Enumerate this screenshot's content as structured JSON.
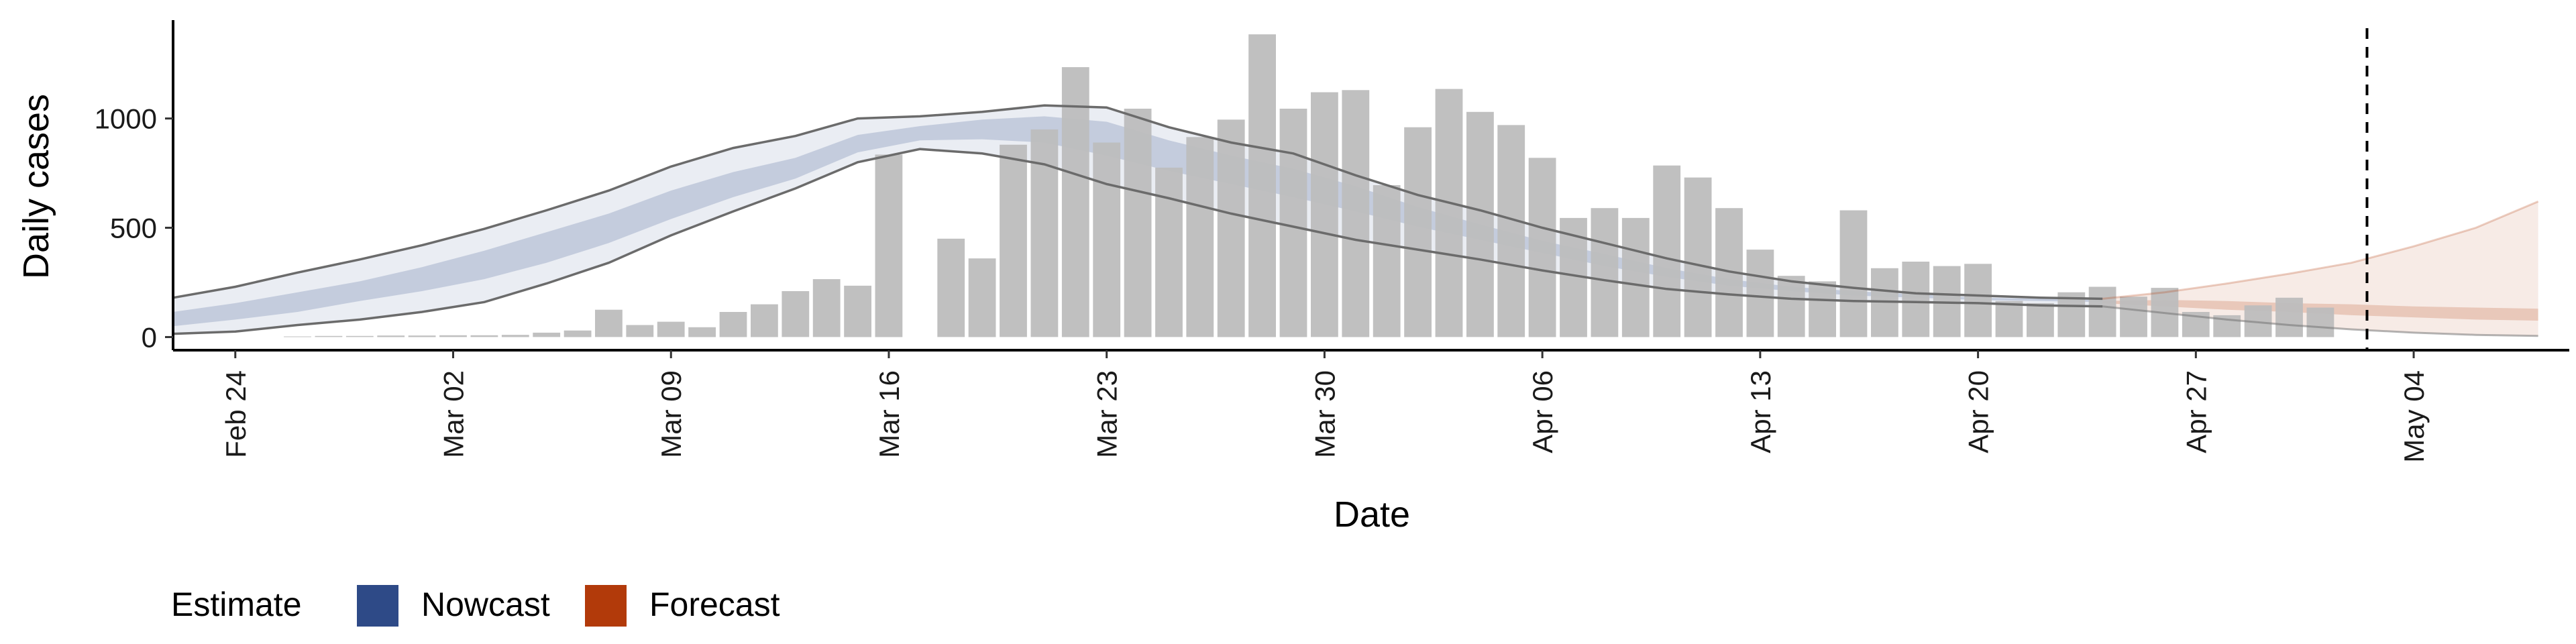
{
  "colors": {
    "nowcast": "#2e4a87",
    "forecast": "#b23a0a",
    "bars": "#bdbdbd",
    "line": "#6b6b6b"
  },
  "chart_data": {
    "type": "bar",
    "xlabel": "Date",
    "ylabel": "Daily cases",
    "ylim": [
      -60,
      1450
    ],
    "yticks": [
      0,
      500,
      1000
    ],
    "grid": false,
    "x_start": "2020-02-22",
    "x_end": "2020-05-09",
    "xticks": [
      {
        "date": "2020-02-24",
        "label": "Feb 24"
      },
      {
        "date": "2020-03-02",
        "label": "Mar 02"
      },
      {
        "date": "2020-03-09",
        "label": "Mar 09"
      },
      {
        "date": "2020-03-16",
        "label": "Mar 16"
      },
      {
        "date": "2020-03-23",
        "label": "Mar 23"
      },
      {
        "date": "2020-03-30",
        "label": "Mar 30"
      },
      {
        "date": "2020-04-06",
        "label": "Apr 06"
      },
      {
        "date": "2020-04-13",
        "label": "Apr 13"
      },
      {
        "date": "2020-04-20",
        "label": "Apr 20"
      },
      {
        "date": "2020-04-27",
        "label": "Apr 27"
      },
      {
        "date": "2020-05-04",
        "label": "May 04"
      }
    ],
    "bars": {
      "dates": [
        "2020-02-26",
        "2020-02-27",
        "2020-02-28",
        "2020-02-29",
        "2020-03-01",
        "2020-03-02",
        "2020-03-03",
        "2020-03-04",
        "2020-03-05",
        "2020-03-06",
        "2020-03-07",
        "2020-03-08",
        "2020-03-09",
        "2020-03-10",
        "2020-03-11",
        "2020-03-12",
        "2020-03-13",
        "2020-03-14",
        "2020-03-15",
        "2020-03-16",
        "2020-03-17",
        "2020-03-18",
        "2020-03-19",
        "2020-03-20",
        "2020-03-21",
        "2020-03-22",
        "2020-03-23",
        "2020-03-24",
        "2020-03-25",
        "2020-03-26",
        "2020-03-27",
        "2020-03-28",
        "2020-03-29",
        "2020-03-30",
        "2020-03-31",
        "2020-04-01",
        "2020-04-02",
        "2020-04-03",
        "2020-04-04",
        "2020-04-05",
        "2020-04-06",
        "2020-04-07",
        "2020-04-08",
        "2020-04-09",
        "2020-04-10",
        "2020-04-11",
        "2020-04-12",
        "2020-04-13",
        "2020-04-14",
        "2020-04-15",
        "2020-04-16",
        "2020-04-17",
        "2020-04-18",
        "2020-04-19",
        "2020-04-20",
        "2020-04-21",
        "2020-04-22",
        "2020-04-23",
        "2020-04-24",
        "2020-04-25",
        "2020-04-26",
        "2020-04-27",
        "2020-04-28",
        "2020-04-29",
        "2020-04-30",
        "2020-05-01",
        "2020-05-02"
      ],
      "values": [
        3,
        5,
        5,
        7,
        7,
        8,
        8,
        10,
        20,
        30,
        125,
        55,
        70,
        45,
        115,
        150,
        210,
        265,
        235,
        835,
        0,
        450,
        360,
        880,
        950,
        1235,
        890,
        1045,
        775,
        915,
        995,
        1385,
        1045,
        1120,
        1130,
        695,
        960,
        1135,
        1030,
        970,
        820,
        545,
        590,
        545,
        785,
        730,
        590,
        400,
        280,
        255,
        580,
        315,
        345,
        325,
        335,
        165,
        155,
        205,
        230,
        185,
        225,
        115,
        100,
        145,
        180,
        135,
        0
      ]
    },
    "vline_date": "2020-05-02",
    "series": [
      {
        "name": "Nowcast",
        "dates": [
          "2020-02-22",
          "2020-02-24",
          "2020-02-26",
          "2020-02-28",
          "2020-03-01",
          "2020-03-03",
          "2020-03-05",
          "2020-03-07",
          "2020-03-09",
          "2020-03-11",
          "2020-03-13",
          "2020-03-15",
          "2020-03-17",
          "2020-03-19",
          "2020-03-21",
          "2020-03-23",
          "2020-03-25",
          "2020-03-27",
          "2020-03-29",
          "2020-03-31",
          "2020-04-02",
          "2020-04-04",
          "2020-04-06",
          "2020-04-08",
          "2020-04-10",
          "2020-04-12",
          "2020-04-14",
          "2020-04-16",
          "2020-04-18",
          "2020-04-20",
          "2020-04-22",
          "2020-04-24"
        ],
        "lower90": [
          15,
          25,
          55,
          80,
          115,
          160,
          245,
          340,
          465,
          575,
          680,
          800,
          860,
          840,
          790,
          700,
          635,
          565,
          505,
          445,
          400,
          355,
          305,
          260,
          220,
          195,
          175,
          165,
          160,
          155,
          145,
          140
        ],
        "upper90": [
          180,
          230,
          295,
          355,
          420,
          495,
          580,
          670,
          780,
          865,
          920,
          1000,
          1010,
          1030,
          1060,
          1050,
          960,
          890,
          840,
          740,
          650,
          580,
          500,
          430,
          360,
          300,
          255,
          225,
          200,
          190,
          180,
          175
        ],
        "lower50": [
          50,
          80,
          115,
          165,
          210,
          265,
          340,
          430,
          540,
          640,
          725,
          845,
          900,
          905,
          890,
          830,
          760,
          700,
          640,
          575,
          505,
          445,
          385,
          325,
          275,
          235,
          210,
          190,
          180,
          170,
          165,
          160
        ],
        "upper50": [
          115,
          155,
          205,
          255,
          320,
          395,
          480,
          565,
          670,
          755,
          820,
          925,
          965,
          995,
          1010,
          985,
          900,
          830,
          770,
          690,
          595,
          515,
          440,
          380,
          315,
          265,
          230,
          210,
          195,
          180,
          175,
          170
        ]
      },
      {
        "name": "Forecast",
        "dates": [
          "2020-04-24",
          "2020-04-26",
          "2020-04-28",
          "2020-04-30",
          "2020-05-02",
          "2020-05-04",
          "2020-05-06",
          "2020-05-08"
        ],
        "lower90": [
          140,
          110,
          80,
          55,
          35,
          20,
          10,
          5
        ],
        "upper90": [
          175,
          205,
          245,
          290,
          340,
          415,
          500,
          620
        ],
        "lower50": [
          155,
          140,
          125,
          115,
          100,
          90,
          80,
          75
        ],
        "upper50": [
          165,
          170,
          165,
          155,
          150,
          140,
          135,
          130
        ]
      }
    ],
    "legend": {
      "title": "Estimate",
      "position": "bottom-left",
      "entries": [
        "Nowcast",
        "Forecast"
      ]
    }
  }
}
